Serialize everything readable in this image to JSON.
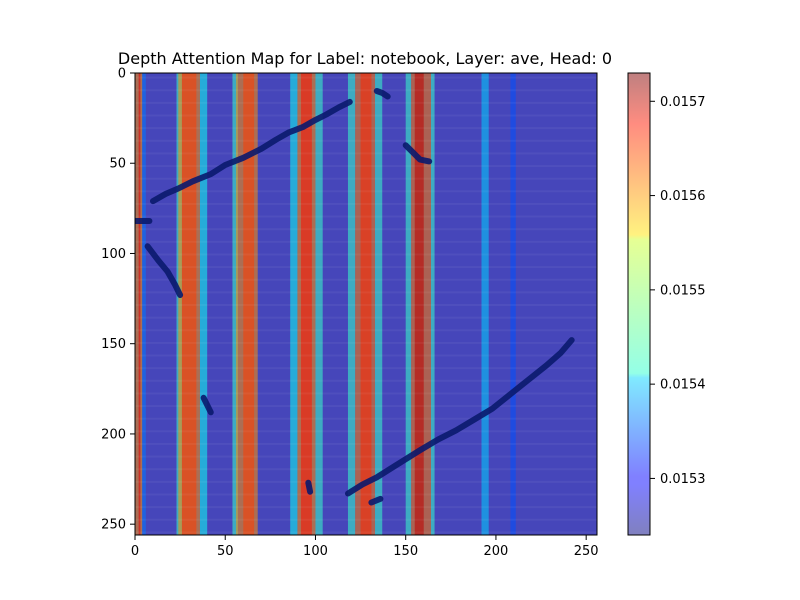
{
  "chart_data": {
    "type": "heatmap",
    "title": "Depth Attention Map for Label: notebook, Layer: ave, Head: 0",
    "xlabel": "",
    "ylabel": "",
    "xlim": [
      0,
      256
    ],
    "ylim": [
      256,
      0
    ],
    "x_ticks": [
      "0",
      "50",
      "100",
      "150",
      "200",
      "250"
    ],
    "y_ticks": [
      "0",
      "50",
      "100",
      "150",
      "200",
      "250"
    ],
    "colorbar": {
      "colormap": "jet",
      "range": [
        0.01524,
        0.01573
      ],
      "ticks": [
        "0.0153",
        "0.0154",
        "0.0155",
        "0.0156",
        "0.0157"
      ],
      "tick_values": [
        0.0153,
        0.0154,
        0.0155,
        0.0156,
        0.0157
      ]
    },
    "background_value": 0.01529,
    "column_bands": [
      {
        "x0": 0,
        "x1": 4,
        "value": 0.0156
      },
      {
        "x0": 2,
        "x1": 3,
        "value": 0.01568
      },
      {
        "x0": 4,
        "x1": 6,
        "value": 0.01536
      },
      {
        "x0": 23,
        "x1": 26,
        "value": 0.01545
      },
      {
        "x0": 24,
        "x1": 36,
        "value": 0.0156
      },
      {
        "x0": 26,
        "x1": 34,
        "value": 0.01564
      },
      {
        "x0": 36,
        "x1": 40,
        "value": 0.01543
      },
      {
        "x0": 54,
        "x1": 57,
        "value": 0.01545
      },
      {
        "x0": 56,
        "x1": 68,
        "value": 0.0156
      },
      {
        "x0": 60,
        "x1": 66,
        "value": 0.01564
      },
      {
        "x0": 86,
        "x1": 90,
        "value": 0.01543
      },
      {
        "x0": 90,
        "x1": 100,
        "value": 0.0156
      },
      {
        "x0": 92,
        "x1": 98,
        "value": 0.01566
      },
      {
        "x0": 100,
        "x1": 104,
        "value": 0.01545
      },
      {
        "x0": 118,
        "x1": 122,
        "value": 0.01545
      },
      {
        "x0": 122,
        "x1": 133,
        "value": 0.01561
      },
      {
        "x0": 125,
        "x1": 131,
        "value": 0.01565
      },
      {
        "x0": 133,
        "x1": 137,
        "value": 0.01545
      },
      {
        "x0": 150,
        "x1": 153,
        "value": 0.01545
      },
      {
        "x0": 153,
        "x1": 164,
        "value": 0.01561
      },
      {
        "x0": 155,
        "x1": 160,
        "value": 0.0157
      },
      {
        "x0": 164,
        "x1": 166,
        "value": 0.01545
      },
      {
        "x0": 192,
        "x1": 196,
        "value": 0.0154
      },
      {
        "x0": 208,
        "x1": 211,
        "value": 0.01534
      }
    ],
    "overlay_strokes": [
      [
        [
          10,
          71
        ],
        [
          17,
          67
        ],
        [
          24,
          64
        ],
        [
          32,
          60
        ],
        [
          42,
          56
        ],
        [
          50,
          51
        ],
        [
          60,
          47
        ],
        [
          70,
          42
        ],
        [
          78,
          37
        ],
        [
          85,
          33
        ],
        [
          93,
          30
        ],
        [
          100,
          26
        ],
        [
          106,
          23
        ],
        [
          113,
          19
        ],
        [
          119,
          16
        ]
      ],
      [
        [
          118,
          233
        ],
        [
          126,
          228
        ],
        [
          134,
          224
        ],
        [
          142,
          219
        ],
        [
          150,
          214
        ],
        [
          158,
          209
        ],
        [
          168,
          203
        ],
        [
          178,
          198
        ],
        [
          188,
          192
        ],
        [
          198,
          186
        ],
        [
          208,
          178
        ],
        [
          218,
          170
        ],
        [
          228,
          162
        ],
        [
          236,
          155
        ],
        [
          242,
          148
        ]
      ],
      [
        [
          7,
          96
        ],
        [
          13,
          104
        ],
        [
          18,
          110
        ],
        [
          22,
          117
        ],
        [
          25,
          123
        ]
      ],
      [
        [
          0,
          82
        ],
        [
          3,
          82
        ],
        [
          5,
          82
        ],
        [
          8,
          82
        ]
      ],
      [
        [
          150,
          40
        ],
        [
          154,
          44
        ],
        [
          158,
          48
        ],
        [
          163,
          49
        ]
      ],
      [
        [
          134,
          10
        ],
        [
          137,
          11
        ],
        [
          140,
          13
        ]
      ],
      [
        [
          38,
          180
        ],
        [
          40,
          184
        ],
        [
          42,
          188
        ]
      ],
      [
        [
          96,
          227
        ],
        [
          97,
          232
        ]
      ],
      [
        [
          131,
          238
        ],
        [
          136,
          236
        ]
      ]
    ]
  }
}
